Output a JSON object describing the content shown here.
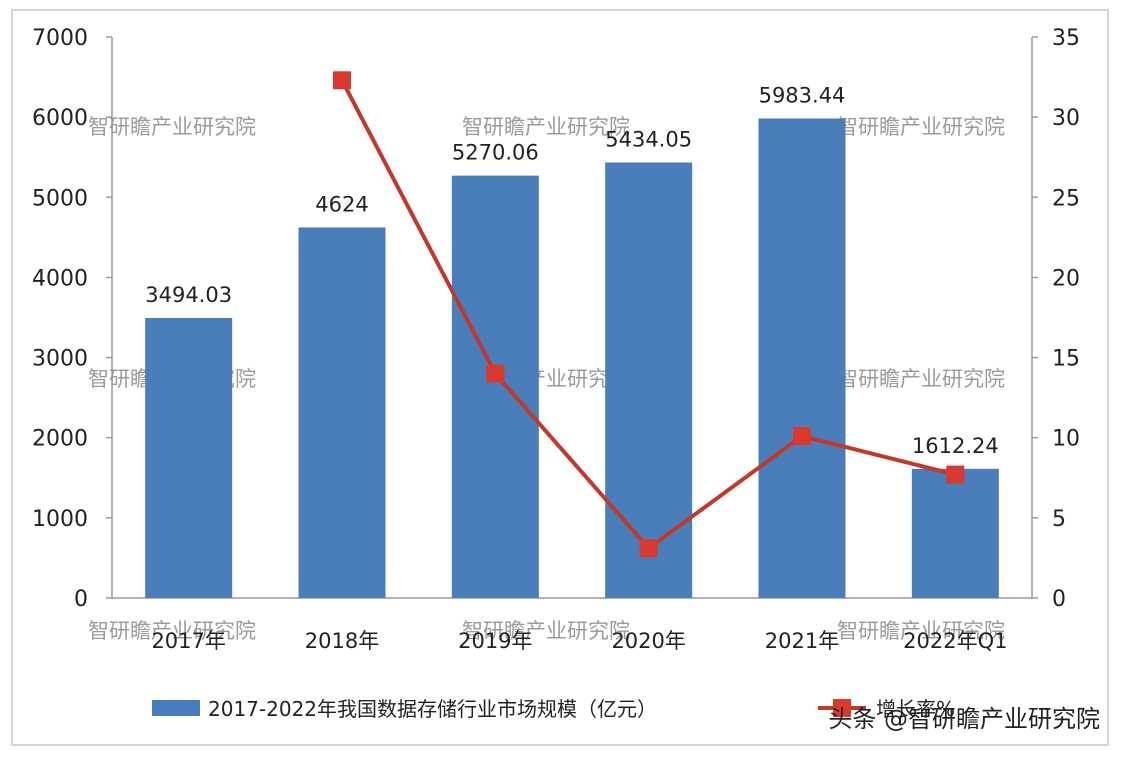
{
  "chart_data": {
    "type": "bar",
    "categories": [
      "2017年",
      "2018年",
      "2019年",
      "2020年",
      "2021年",
      "2022年Q1"
    ],
    "series": [
      {
        "name": "2017-2022年我国数据存储行业市场规模（亿元）",
        "type": "bar",
        "axis": "left",
        "values": [
          3494.03,
          4624,
          5270.06,
          5434.05,
          5983.44,
          1612.24
        ],
        "data_labels": [
          "3494.03",
          "4624",
          "5270.06",
          "5434.05",
          "5983.44",
          "1612.24"
        ]
      },
      {
        "name": "增长率%",
        "type": "line",
        "axis": "right",
        "values": [
          null,
          32.3,
          14.0,
          3.1,
          10.1,
          7.7
        ]
      }
    ],
    "y_left": {
      "ylim": [
        0,
        7000
      ],
      "ticks": [
        0,
        1000,
        2000,
        3000,
        4000,
        5000,
        6000,
        7000
      ]
    },
    "y_right": {
      "ylim": [
        0,
        35
      ],
      "ticks": [
        0,
        5,
        10,
        15,
        20,
        25,
        30,
        35
      ]
    },
    "legend": {
      "placement": "bottom"
    },
    "grid": false,
    "colors": {
      "bar": "#4a7ebb",
      "line": "#c0392b",
      "marker": "#d93a30"
    },
    "watermark": "智研瞻产业研究院"
  },
  "credit": "头条 @智研瞻产业研究院"
}
